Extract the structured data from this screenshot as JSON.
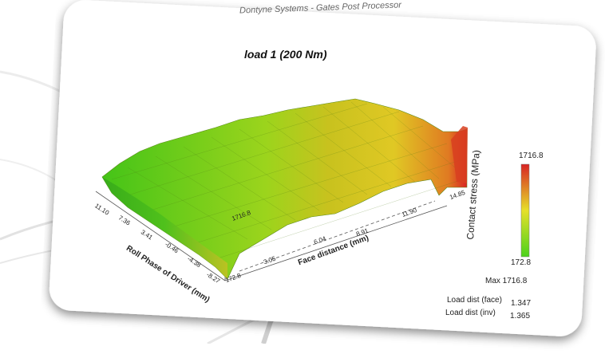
{
  "header": {
    "text": "Dontyne Systems - Gates Post Processor"
  },
  "plot_title": "load  1 (200 Nm)",
  "colorbar": {
    "label": "Contact stress (MPa)",
    "max": "1716.8",
    "min": "172.8"
  },
  "axis_roll": {
    "label": "Roll Phase of Driver (mm)",
    "ticks": [
      "11.10",
      "7.36",
      "3.41",
      "-0.46",
      "-4.38",
      "-8.27"
    ]
  },
  "axis_face": {
    "label": "Face distance (mm)",
    "ticks": [
      "3.05",
      "6.04",
      "8.91",
      "11.90",
      "14.85"
    ]
  },
  "axis_z": {
    "ticks": [
      "1716.8",
      "172.8"
    ]
  },
  "stats": {
    "max": "Max 1716.8",
    "load_dist_face_label": "Load dist (face)",
    "load_dist_face_value": "1.347",
    "load_dist_inv_label": "Load dist (inv)",
    "load_dist_inv_value": "1.365"
  },
  "colors": {
    "low": "#4cd21c",
    "mid": "#e6e02a",
    "high": "#d82424",
    "card_bg": "#ffffff"
  }
}
